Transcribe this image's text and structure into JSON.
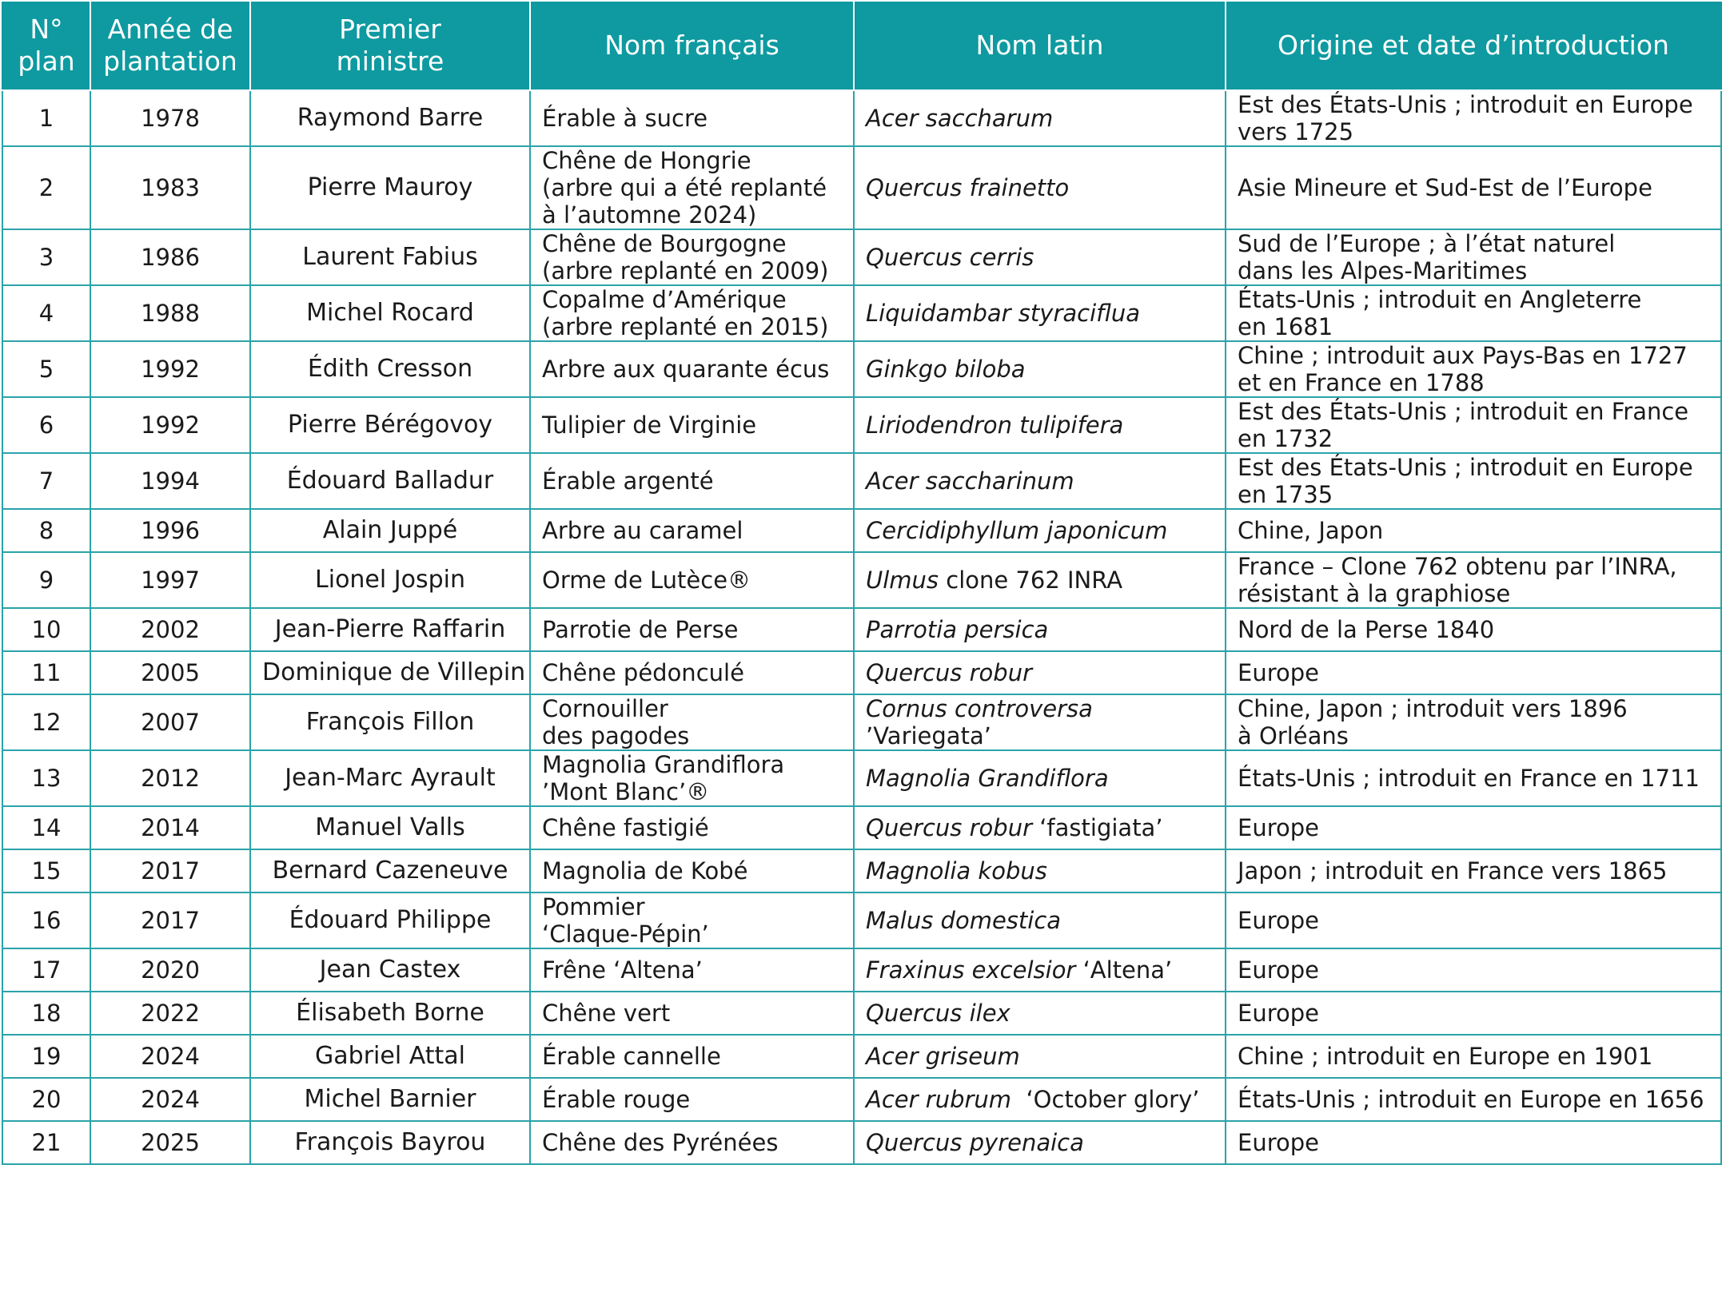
{
  "headers": {
    "num": [
      "N°",
      "plan"
    ],
    "year": [
      "Année de",
      "plantation"
    ],
    "pm": [
      "Premier",
      "ministre"
    ],
    "fr": "Nom français",
    "latin": "Nom latin",
    "origin": "Origine et date d’introduction"
  },
  "rows": [
    {
      "num": "1",
      "year": "1978",
      "pm": "Raymond Barre",
      "fr": [
        "Érable à sucre"
      ],
      "latin": [
        {
          "it": "Acer saccharum",
          "rest": ""
        }
      ],
      "origin": [
        "Est des États-Unis ; introduit en Europe",
        "vers 1725"
      ]
    },
    {
      "num": "2",
      "year": "1983",
      "pm": "Pierre Mauroy",
      "fr": [
        "Chêne de Hongrie",
        "(arbre qui a été replanté",
        "à l’automne 2024)"
      ],
      "latin": [
        {
          "it": "Quercus frainetto",
          "rest": ""
        }
      ],
      "origin": [
        "Asie Mineure et Sud-Est de l’Europe"
      ]
    },
    {
      "num": "3",
      "year": "1986",
      "pm": "Laurent Fabius",
      "fr": [
        "Chêne de Bourgogne",
        "(arbre replanté en 2009)"
      ],
      "latin": [
        {
          "it": "Quercus cerris",
          "rest": ""
        }
      ],
      "origin": [
        "Sud de l’Europe ; à l’état naturel",
        "dans les Alpes-Maritimes"
      ]
    },
    {
      "num": "4",
      "year": "1988",
      "pm": "Michel Rocard",
      "fr": [
        "Copalme d’Amérique",
        "(arbre replanté en 2015)"
      ],
      "latin": [
        {
          "it": "Liquidambar styraciflua",
          "rest": ""
        }
      ],
      "origin": [
        "États-Unis ; introduit en Angleterre",
        "en 1681"
      ]
    },
    {
      "num": "5",
      "year": "1992",
      "pm": "Édith Cresson",
      "fr": [
        "Arbre aux quarante écus"
      ],
      "latin": [
        {
          "it": "Ginkgo biloba",
          "rest": ""
        }
      ],
      "origin": [
        "Chine ; introduit aux Pays-Bas en 1727",
        "et en France en 1788"
      ]
    },
    {
      "num": "6",
      "year": "1992",
      "pm": "Pierre Bérégovoy",
      "fr": [
        "Tulipier de Virginie"
      ],
      "latin": [
        {
          "it": "Liriodendron tulipifera",
          "rest": ""
        }
      ],
      "origin": [
        "Est des États-Unis ; introduit en France",
        "en 1732"
      ]
    },
    {
      "num": "7",
      "year": "1994",
      "pm": "Édouard Balladur",
      "fr": [
        "Érable argenté"
      ],
      "latin": [
        {
          "it": "Acer saccharinum",
          "rest": ""
        }
      ],
      "origin": [
        "Est des États-Unis ; introduit en Europe",
        "en 1735"
      ]
    },
    {
      "num": "8",
      "year": "1996",
      "pm": "Alain Juppé",
      "fr": [
        "Arbre au caramel"
      ],
      "latin": [
        {
          "it": "Cercidiphyllum japonicum",
          "rest": ""
        }
      ],
      "origin": [
        "Chine, Japon"
      ]
    },
    {
      "num": "9",
      "year": "1997",
      "pm": "Lionel Jospin",
      "fr": [
        "Orme de Lutèce®"
      ],
      "latin": [
        {
          "it": "Ulmus",
          "rest": " clone 762 INRA"
        }
      ],
      "origin": [
        "France – Clone 762 obtenu par l’INRA,",
        "résistant à la graphiose"
      ]
    },
    {
      "num": "10",
      "year": "2002",
      "pm": "Jean-Pierre Raffarin",
      "fr": [
        "Parrotie de Perse"
      ],
      "latin": [
        {
          "it": "Parrotia persica",
          "rest": ""
        }
      ],
      "origin": [
        "Nord de la Perse 1840"
      ]
    },
    {
      "num": "11",
      "year": "2005",
      "pm": "Dominique de Villepin",
      "fr": [
        "Chêne pédonculé"
      ],
      "latin": [
        {
          "it": "Quercus robur",
          "rest": ""
        }
      ],
      "origin": [
        "Europe"
      ]
    },
    {
      "num": "12",
      "year": "2007",
      "pm": "François Fillon",
      "fr": [
        "Cornouiller",
        "des pagodes"
      ],
      "latin": [
        {
          "it": "Cornus controversa",
          "rest": ""
        },
        {
          "it": "",
          "rest": "’Variegata’"
        }
      ],
      "origin": [
        "Chine, Japon ; introduit vers 1896",
        "à Orléans"
      ]
    },
    {
      "num": "13",
      "year": "2012",
      "pm": "Jean-Marc Ayrault",
      "fr": [
        "Magnolia Grandiflora",
        "’Mont Blanc’®"
      ],
      "latin": [
        {
          "it": "Magnolia Grandiflora",
          "rest": ""
        }
      ],
      "origin": [
        "États-Unis ; introduit en France en 1711"
      ]
    },
    {
      "num": "14",
      "year": "2014",
      "pm": "Manuel Valls",
      "fr": [
        "Chêne fastigié"
      ],
      "latin": [
        {
          "it": "Quercus robur",
          "rest": " ‘fastigiata’"
        }
      ],
      "origin": [
        "Europe"
      ]
    },
    {
      "num": "15",
      "year": "2017",
      "pm": "Bernard Cazeneuve",
      "fr": [
        "Magnolia de Kobé"
      ],
      "latin": [
        {
          "it": "Magnolia kobus",
          "rest": ""
        }
      ],
      "origin": [
        "Japon ; introduit en France vers 1865"
      ]
    },
    {
      "num": "16",
      "year": "2017",
      "pm": "Édouard Philippe",
      "fr": [
        "Pommier",
        "‘Claque-Pépin’"
      ],
      "latin": [
        {
          "it": "Malus domestica",
          "rest": ""
        }
      ],
      "origin": [
        "Europe"
      ]
    },
    {
      "num": "17",
      "year": "2020",
      "pm": "Jean Castex",
      "fr": [
        "Frêne ‘Altena’"
      ],
      "latin": [
        {
          "it": "Fraxinus excelsior",
          "rest": " ‘Altena’"
        }
      ],
      "origin": [
        "Europe"
      ]
    },
    {
      "num": "18",
      "year": "2022",
      "pm": "Élisabeth Borne",
      "fr": [
        "Chêne vert"
      ],
      "latin": [
        {
          "it": "Quercus ilex",
          "rest": ""
        }
      ],
      "origin": [
        "Europe"
      ]
    },
    {
      "num": "19",
      "year": "2024",
      "pm": "Gabriel Attal",
      "fr": [
        "Érable cannelle"
      ],
      "latin": [
        {
          "it": "Acer griseum",
          "rest": ""
        }
      ],
      "origin": [
        "Chine ; introduit en Europe en 1901"
      ]
    },
    {
      "num": "20",
      "year": "2024",
      "pm": "Michel Barnier",
      "fr": [
        "Érable rouge"
      ],
      "latin": [
        {
          "it": "Acer rubrum",
          "rest": "  ‘October glory’"
        }
      ],
      "origin": [
        "États-Unis ; introduit en Europe en 1656"
      ]
    },
    {
      "num": "21",
      "year": "2025",
      "pm": "François Bayrou",
      "fr": [
        "Chêne des Pyrénées"
      ],
      "latin": [
        {
          "it": "Quercus pyrenaica",
          "rest": ""
        }
      ],
      "origin": [
        "Europe"
      ]
    }
  ]
}
